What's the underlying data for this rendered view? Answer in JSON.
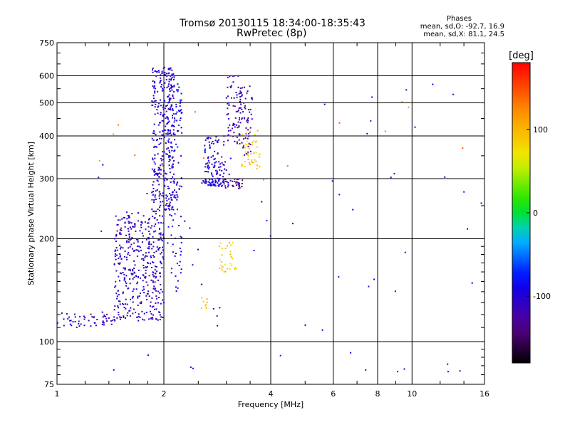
{
  "header": {
    "title_line1": "Tromsø 20130115 18:34:00-18:35:43",
    "title_line2": "RwPretec (8p)",
    "stats_title": "Phases",
    "stats_line1": "mean, sd,O: -92.7, 16.9",
    "stats_line2": "mean, sd,X:  81.1, 24.5"
  },
  "colorbar": {
    "label": "[deg]",
    "ticks": [
      "100",
      "0",
      "-100"
    ],
    "tick_values": [
      100,
      0,
      -100
    ],
    "range": [
      -180,
      180
    ]
  },
  "chart_data": {
    "type": "scatter",
    "xlabel": "Frequency [MHz]",
    "ylabel": "Stationary phase Virtual Height [km]",
    "x_scale": "log",
    "y_scale": "log",
    "xlim": [
      1,
      16
    ],
    "ylim": [
      75,
      750
    ],
    "x_ticks": [
      1,
      2,
      4,
      6,
      8,
      10,
      16
    ],
    "x_tick_labels": [
      "1",
      "2",
      "4",
      "6",
      "8",
      "10",
      "16"
    ],
    "y_ticks": [
      75,
      100,
      200,
      300,
      400,
      500,
      600,
      750
    ],
    "y_tick_labels": [
      "75",
      "100",
      "200",
      "300",
      "400",
      "500",
      "600",
      "750"
    ],
    "grid": true,
    "color_encoding": "phase [deg]",
    "series": [
      {
        "f_range": [
          1.0,
          1.45
        ],
        "h_range": [
          110,
          122
        ],
        "phase": -110,
        "count": 55
      },
      {
        "f_range": [
          1.45,
          2.0
        ],
        "h_range": [
          115,
          240
        ],
        "phase": -110,
        "count": 420
      },
      {
        "f_range": [
          1.85,
          2.15
        ],
        "h_range": [
          240,
          640
        ],
        "phase": -105,
        "count": 330
      },
      {
        "f_range": [
          2.05,
          2.25
        ],
        "h_range": [
          140,
          580
        ],
        "phase": -90,
        "count": 120
      },
      {
        "f_range": [
          2.55,
          3.05
        ],
        "h_range": [
          285,
          300
        ],
        "phase": -100,
        "count": 60
      },
      {
        "f_range": [
          2.95,
          3.35
        ],
        "h_range": [
          280,
          300
        ],
        "phase": -140,
        "count": 30
      },
      {
        "f_range": [
          2.6,
          3.0
        ],
        "h_range": [
          300,
          400
        ],
        "phase": -100,
        "count": 80
      },
      {
        "f_range": [
          3.0,
          3.3
        ],
        "h_range": [
          380,
          600
        ],
        "phase": -120,
        "count": 70
      },
      {
        "f_range": [
          3.25,
          3.55
        ],
        "h_range": [
          350,
          560
        ],
        "phase": -120,
        "count": 60
      },
      {
        "f_range": [
          3.3,
          3.75
        ],
        "h_range": [
          320,
          420
        ],
        "phase": 90,
        "count": 45
      },
      {
        "f_range": [
          2.85,
          3.2
        ],
        "h_range": [
          160,
          195
        ],
        "phase": 90,
        "count": 30
      },
      {
        "f_range": [
          2.55,
          2.65
        ],
        "h_range": [
          125,
          135
        ],
        "phase": 90,
        "count": 8
      },
      {
        "f_range": [
          1.3,
          16.0
        ],
        "h_range": [
          78,
          630
        ],
        "phase": -90,
        "count": 60
      },
      {
        "f_range": [
          1.1,
          14.0
        ],
        "h_range": [
          280,
          620
        ],
        "phase": 130,
        "count": 15
      }
    ]
  }
}
